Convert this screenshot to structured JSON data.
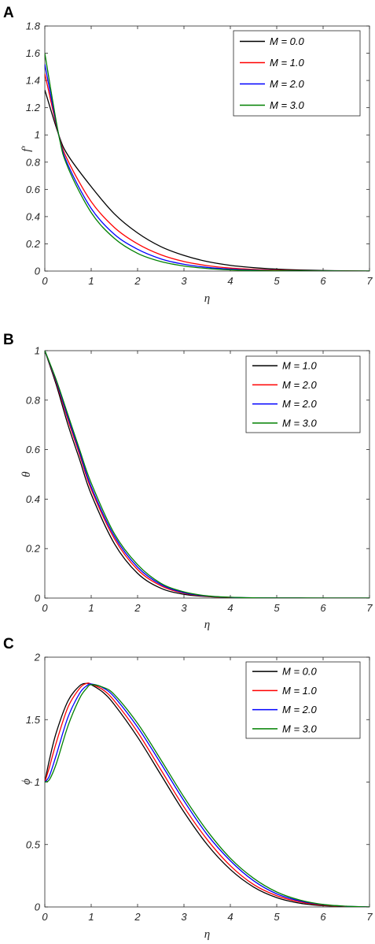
{
  "chart_data": [
    {
      "type": "line",
      "panel": "A",
      "xlabel": "η",
      "ylabel": "f′",
      "xlim": [
        0,
        7
      ],
      "ylim": [
        0,
        1.8
      ],
      "xticks": [
        "0",
        "1",
        "2",
        "3",
        "4",
        "5",
        "6",
        "7"
      ],
      "yticks": [
        "0",
        "0.2",
        "0.4",
        "0.6",
        "0.8",
        "1",
        "1.2",
        "1.4",
        "1.6",
        "1.8"
      ],
      "grid": false,
      "legend_position": "top-right",
      "x": [
        0,
        0.3,
        0.5,
        1,
        1.5,
        2,
        2.5,
        3,
        3.5,
        4,
        4.5,
        5,
        5.5,
        6,
        6.5,
        7
      ],
      "series": [
        {
          "name": "M = 0.0",
          "color": "#000000",
          "values": [
            1.33,
            1.0,
            0.85,
            0.62,
            0.42,
            0.28,
            0.18,
            0.115,
            0.07,
            0.042,
            0.025,
            0.014,
            0.008,
            0.004,
            0.002,
            0.0
          ]
        },
        {
          "name": "M = 1.0",
          "color": "#ff0000",
          "values": [
            1.45,
            1.0,
            0.81,
            0.51,
            0.32,
            0.2,
            0.12,
            0.07,
            0.04,
            0.022,
            0.012,
            0.006,
            0.003,
            0.0015,
            0.0005,
            0.0
          ]
        },
        {
          "name": "M = 2.0",
          "color": "#0000ff",
          "values": [
            1.52,
            1.0,
            0.78,
            0.46,
            0.27,
            0.16,
            0.09,
            0.05,
            0.027,
            0.014,
            0.007,
            0.003,
            0.0015,
            0.0005,
            0.0002,
            0.0
          ]
        },
        {
          "name": "M = 3.0",
          "color": "#008000",
          "values": [
            1.6,
            1.0,
            0.76,
            0.43,
            0.24,
            0.13,
            0.07,
            0.037,
            0.019,
            0.009,
            0.004,
            0.002,
            0.001,
            0.0004,
            0.0001,
            0.0
          ]
        }
      ]
    },
    {
      "type": "line",
      "panel": "B",
      "xlabel": "η",
      "ylabel": "θ",
      "xlim": [
        0,
        7
      ],
      "ylim": [
        0,
        1
      ],
      "xticks": [
        "0",
        "1",
        "2",
        "3",
        "4",
        "5",
        "6",
        "7"
      ],
      "yticks": [
        "0",
        "0.2",
        "0.4",
        "0.6",
        "0.8",
        "1"
      ],
      "grid": false,
      "legend_position": "top-right",
      "x": [
        0,
        0.25,
        0.5,
        0.75,
        1,
        1.5,
        2,
        2.5,
        3,
        3.5,
        4,
        4.5,
        5,
        6,
        7
      ],
      "series": [
        {
          "name": "M = 1.0",
          "color": "#000000",
          "values": [
            1.0,
            0.86,
            0.7,
            0.56,
            0.42,
            0.22,
            0.1,
            0.04,
            0.015,
            0.006,
            0.002,
            0.0008,
            0.0003,
            0.0,
            0.0
          ]
        },
        {
          "name": "M = 2.0",
          "color": "#ff0000",
          "values": [
            1.0,
            0.87,
            0.72,
            0.58,
            0.44,
            0.24,
            0.115,
            0.05,
            0.02,
            0.007,
            0.0025,
            0.001,
            0.0004,
            0.0,
            0.0
          ]
        },
        {
          "name": "M = 2.0",
          "color": "#0000ff",
          "values": [
            1.0,
            0.875,
            0.73,
            0.59,
            0.45,
            0.25,
            0.125,
            0.055,
            0.022,
            0.008,
            0.003,
            0.001,
            0.0004,
            0.0,
            0.0
          ]
        },
        {
          "name": "M = 3.0",
          "color": "#008000",
          "values": [
            1.0,
            0.88,
            0.74,
            0.6,
            0.465,
            0.26,
            0.135,
            0.06,
            0.025,
            0.009,
            0.0035,
            0.0012,
            0.0005,
            0.0,
            0.0
          ]
        }
      ]
    },
    {
      "type": "line",
      "panel": "C",
      "xlabel": "η",
      "ylabel": "ϕ",
      "xlim": [
        0,
        7
      ],
      "ylim": [
        0,
        2
      ],
      "xticks": [
        "0",
        "1",
        "2",
        "3",
        "4",
        "5",
        "6",
        "7"
      ],
      "yticks": [
        "0",
        "0.5",
        "1",
        "1.5",
        "2"
      ],
      "grid": false,
      "legend_position": "top-right",
      "x": [
        0,
        0.1,
        0.25,
        0.5,
        0.75,
        0.9,
        1,
        1.25,
        1.5,
        2,
        2.5,
        3,
        3.5,
        4,
        4.5,
        5,
        5.5,
        6,
        6.5,
        7
      ],
      "series": [
        {
          "name": "M = 0.0",
          "color": "#000000",
          "values": [
            1.0,
            1.18,
            1.4,
            1.65,
            1.77,
            1.79,
            1.78,
            1.72,
            1.62,
            1.36,
            1.06,
            0.76,
            0.5,
            0.3,
            0.16,
            0.075,
            0.03,
            0.01,
            0.003,
            0.0
          ]
        },
        {
          "name": "M = 1.0",
          "color": "#ff0000",
          "values": [
            1.0,
            1.12,
            1.32,
            1.6,
            1.75,
            1.79,
            1.785,
            1.74,
            1.65,
            1.4,
            1.1,
            0.8,
            0.54,
            0.33,
            0.18,
            0.09,
            0.04,
            0.014,
            0.004,
            0.0
          ]
        },
        {
          "name": "M = 2.0",
          "color": "#0000ff",
          "values": [
            1.0,
            1.05,
            1.22,
            1.52,
            1.71,
            1.77,
            1.785,
            1.755,
            1.68,
            1.44,
            1.15,
            0.85,
            0.58,
            0.37,
            0.21,
            0.105,
            0.048,
            0.018,
            0.005,
            0.0
          ]
        },
        {
          "name": "M = 3.0",
          "color": "#008000",
          "values": [
            1.0,
            1.02,
            1.15,
            1.45,
            1.67,
            1.75,
            1.78,
            1.76,
            1.7,
            1.47,
            1.18,
            0.88,
            0.61,
            0.39,
            0.23,
            0.12,
            0.055,
            0.02,
            0.006,
            0.0
          ]
        }
      ]
    }
  ]
}
